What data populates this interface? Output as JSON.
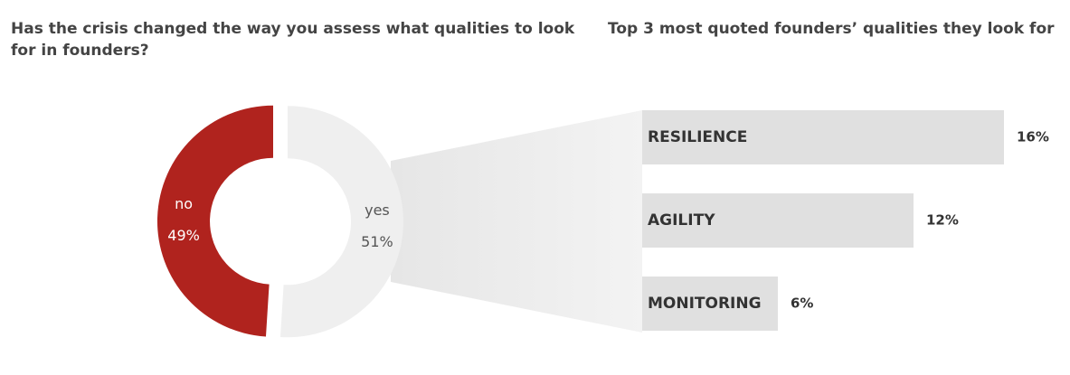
{
  "chart_data": [
    {
      "type": "pie",
      "title": "Has the crisis changed the way you assess what qualities to look for in founders?",
      "categories": [
        "yes",
        "no"
      ],
      "values": [
        51,
        49
      ],
      "value_labels": [
        "51%",
        "49%"
      ],
      "colors": [
        "#efefef",
        "#b0231e"
      ],
      "label_colors": [
        "#555555",
        "#ffffff"
      ]
    },
    {
      "type": "bar",
      "title": "Top 3 most quoted founders’ qualities they look for",
      "categories": [
        "RESILIENCE",
        "AGILITY",
        "MONITORING"
      ],
      "values": [
        16,
        12,
        6
      ],
      "value_labels": [
        "16%",
        "12%",
        "6%"
      ],
      "color": "#e0e0e0"
    }
  ]
}
